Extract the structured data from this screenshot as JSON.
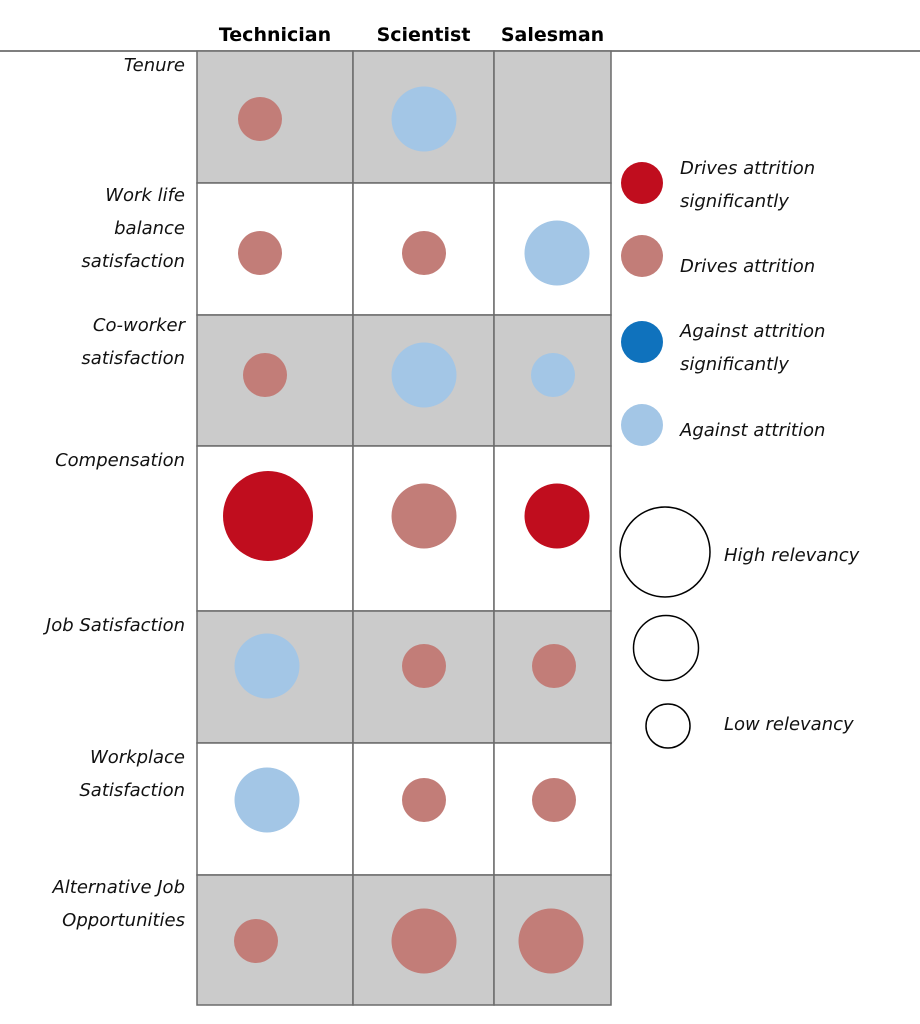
{
  "chart_data": {
    "type": "bubble-matrix",
    "columns": [
      "Technician",
      "Scientist",
      "Salesman"
    ],
    "rows": [
      {
        "label_lines": [
          "Tenure"
        ],
        "shaded": true,
        "cells": [
          {
            "category": "drives",
            "relevancy": "low"
          },
          {
            "category": "against",
            "relevancy": "high"
          },
          null
        ]
      },
      {
        "label_lines": [
          "Work life",
          "balance",
          "satisfaction"
        ],
        "shaded": false,
        "cells": [
          {
            "category": "drives",
            "relevancy": "low"
          },
          {
            "category": "drives",
            "relevancy": "low"
          },
          {
            "category": "against",
            "relevancy": "high"
          }
        ]
      },
      {
        "label_lines": [
          "Co-worker",
          "satisfaction"
        ],
        "shaded": true,
        "cells": [
          {
            "category": "drives",
            "relevancy": "low"
          },
          {
            "category": "against",
            "relevancy": "high"
          },
          {
            "category": "against",
            "relevancy": "low"
          }
        ]
      },
      {
        "label_lines": [
          "Compensation"
        ],
        "shaded": false,
        "cells": [
          {
            "category": "drives_significantly",
            "relevancy": "very_high"
          },
          {
            "category": "drives",
            "relevancy": "high"
          },
          {
            "category": "drives_significantly",
            "relevancy": "high"
          }
        ]
      },
      {
        "label_lines": [
          "Job Satisfaction"
        ],
        "shaded": true,
        "cells": [
          {
            "category": "against",
            "relevancy": "high"
          },
          {
            "category": "drives",
            "relevancy": "low"
          },
          {
            "category": "drives",
            "relevancy": "low"
          }
        ]
      },
      {
        "label_lines": [
          "Workplace",
          "Satisfaction"
        ],
        "shaded": false,
        "cells": [
          {
            "category": "against",
            "relevancy": "high"
          },
          {
            "category": "drives",
            "relevancy": "low"
          },
          {
            "category": "drives",
            "relevancy": "low"
          }
        ]
      },
      {
        "label_lines": [
          "Alternative Job",
          "Opportunities"
        ],
        "shaded": true,
        "cells": [
          {
            "category": "drives",
            "relevancy": "low"
          },
          {
            "category": "drives",
            "relevancy": "high"
          },
          {
            "category": "drives",
            "relevancy": "high"
          }
        ]
      }
    ],
    "categories": {
      "drives_significantly": {
        "color": "#c00d1e"
      },
      "drives": {
        "color": "#c27d78"
      },
      "against_significantly": {
        "color": "#0f72bd"
      },
      "against": {
        "color": "#a3c6e6"
      }
    },
    "legend_color": [
      {
        "category": "drives_significantly",
        "label_lines": [
          "Drives attrition",
          "significantly"
        ]
      },
      {
        "category": "drives",
        "label_lines": [
          "Drives attrition"
        ]
      },
      {
        "category": "against_significantly",
        "label_lines": [
          "Against attrition",
          "significantly"
        ]
      },
      {
        "category": "against",
        "label_lines": [
          "Against attrition"
        ]
      }
    ],
    "legend_size": [
      {
        "relevancy": "very_high",
        "label": "High relevancy"
      },
      {
        "relevancy": "high",
        "label": ""
      },
      {
        "relevancy": "low",
        "label": "Low relevancy"
      }
    ]
  }
}
